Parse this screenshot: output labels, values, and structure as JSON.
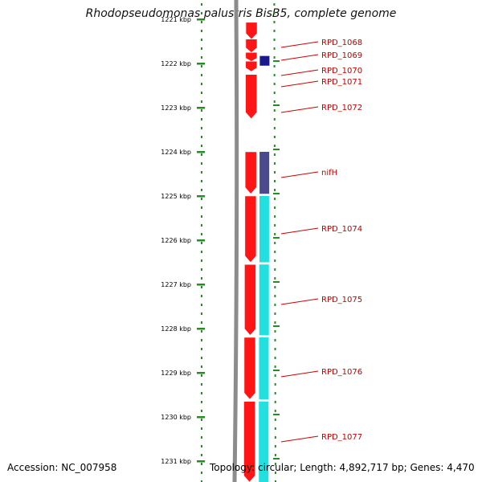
{
  "title": "Rhodopseudomonas palustris BisB5, complete genome",
  "footer": {
    "accession": "Accession: NC_007958",
    "summary": "Topology: circular; Length: 4,892,717 bp; Genes: 4,470"
  },
  "ruler": {
    "unit": "kbp",
    "ticks": [
      {
        "kbp": 1221,
        "label": "1221 kbp"
      },
      {
        "kbp": 1222,
        "label": "1222 kbp"
      },
      {
        "kbp": 1223,
        "label": "1223 kbp"
      },
      {
        "kbp": 1224,
        "label": "1224 kbp"
      },
      {
        "kbp": 1225,
        "label": "1225 kbp"
      },
      {
        "kbp": 1226,
        "label": "1226 kbp"
      },
      {
        "kbp": 1227,
        "label": "1227 kbp"
      },
      {
        "kbp": 1228,
        "label": "1228 kbp"
      },
      {
        "kbp": 1229,
        "label": "1229 kbp"
      },
      {
        "kbp": 1230,
        "label": "1230 kbp"
      },
      {
        "kbp": 1231,
        "label": "1231 kbp"
      }
    ]
  },
  "genes": [
    {
      "name": "RPD_1068",
      "start_kbp": 1221.07,
      "end_kbp": 1221.45,
      "track": "cds"
    },
    {
      "name": "RPD_1069",
      "start_kbp": 1221.45,
      "end_kbp": 1221.75,
      "track": "cds"
    },
    {
      "name": "RPD_1070",
      "start_kbp": 1221.75,
      "end_kbp": 1221.95,
      "track": "cds"
    },
    {
      "name": "RPD_1071",
      "start_kbp": 1221.95,
      "end_kbp": 1222.18,
      "track": "cds"
    },
    {
      "name": "RPD_1072",
      "start_kbp": 1222.25,
      "end_kbp": 1223.25,
      "track": "cds"
    },
    {
      "name": "nifH",
      "start_kbp": 1224.0,
      "end_kbp": 1224.95,
      "track": "cds"
    },
    {
      "name": "RPD_1074",
      "start_kbp": 1225.0,
      "end_kbp": 1226.5,
      "track": "cds"
    },
    {
      "name": "RPD_1075",
      "start_kbp": 1226.55,
      "end_kbp": 1228.15,
      "track": "cds"
    },
    {
      "name": "RPD_1076",
      "start_kbp": 1228.2,
      "end_kbp": 1229.6,
      "track": "cds"
    },
    {
      "name": "RPD_1077",
      "start_kbp": 1229.65,
      "end_kbp": 1231.5,
      "track": "cds"
    }
  ],
  "features": [
    {
      "gene": "RPD_1070",
      "start_kbp": 1221.83,
      "end_kbp": 1222.05,
      "color": "#1a1a8c"
    },
    {
      "gene": "nifH",
      "start_kbp": 1224.0,
      "end_kbp": 1224.95,
      "color": "#4b4a8c"
    },
    {
      "gene": "RPD_1074",
      "start_kbp": 1225.0,
      "end_kbp": 1226.5,
      "color": "#22e0e0"
    },
    {
      "gene": "RPD_1075",
      "start_kbp": 1226.55,
      "end_kbp": 1228.15,
      "color": "#22e0e0"
    },
    {
      "gene": "RPD_1076",
      "start_kbp": 1228.2,
      "end_kbp": 1229.6,
      "color": "#22e0e0"
    },
    {
      "gene": "RPD_1077",
      "start_kbp": 1229.65,
      "end_kbp": 1231.5,
      "color": "#22e0e0"
    }
  ],
  "colors": {
    "cds": "#ff1515",
    "backbone": "#8c8c8c",
    "ruler": "#2a8a2a",
    "label": "#c00000",
    "label_line": "#cc0000"
  }
}
